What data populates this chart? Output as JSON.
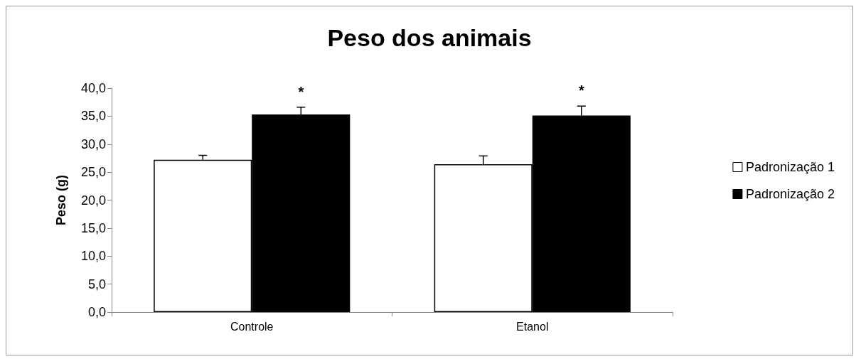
{
  "chart_data": {
    "type": "bar",
    "title": "Peso dos animais",
    "ylabel": "Peso (g)",
    "categories": [
      "Controle",
      "Etanol"
    ],
    "series": [
      {
        "name": "Padronização 1",
        "color": "#ffffff",
        "values": [
          27.2,
          26.4
        ],
        "errors": [
          [
            27.2,
            28.0
          ],
          [
            26.4,
            27.9
          ]
        ]
      },
      {
        "name": "Padronização 2",
        "color": "#000000",
        "values": [
          35.3,
          35.1
        ],
        "errors": [
          [
            35.3,
            36.6
          ],
          [
            35.1,
            36.8
          ]
        ]
      }
    ],
    "ylim": [
      0,
      40
    ],
    "yticks": [
      {
        "value": 0,
        "label": "0,0"
      },
      {
        "value": 5,
        "label": "5,0"
      },
      {
        "value": 10,
        "label": "10,0"
      },
      {
        "value": 15,
        "label": "15,0"
      },
      {
        "value": 20,
        "label": "20,0"
      },
      {
        "value": 25,
        "label": "25,0"
      },
      {
        "value": 30,
        "label": "30,0"
      },
      {
        "value": 35,
        "label": "35,0"
      },
      {
        "value": 40,
        "label": "40,0"
      }
    ],
    "annotations": [
      "*",
      "*"
    ],
    "grid": false,
    "legend": "right"
  }
}
